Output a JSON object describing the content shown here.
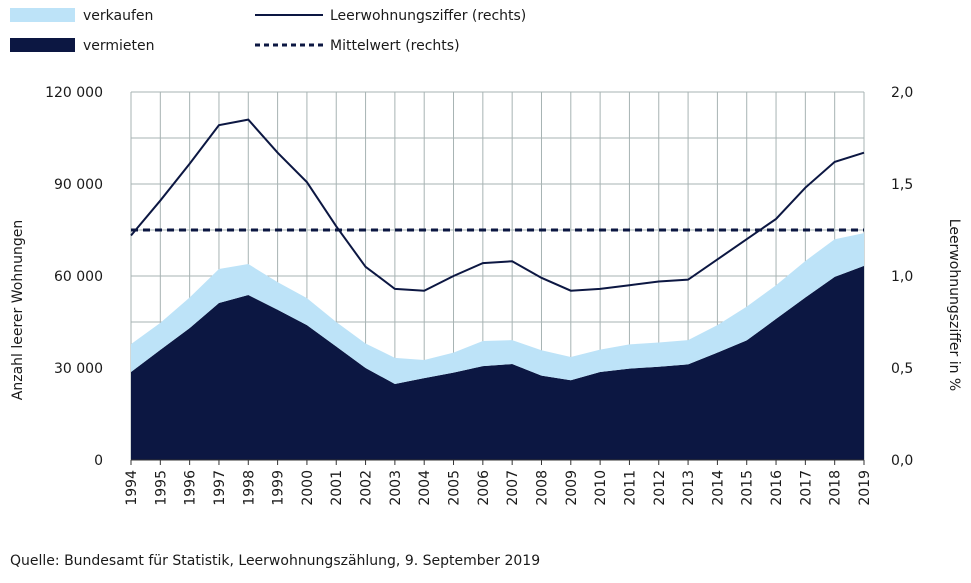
{
  "chart_data": {
    "type": "area",
    "x": [
      1994,
      1995,
      1996,
      1997,
      1998,
      1999,
      2000,
      2001,
      2002,
      2003,
      2004,
      2005,
      2006,
      2007,
      2008,
      2009,
      2010,
      2011,
      2012,
      2013,
      2014,
      2015,
      2016,
      2017,
      2018,
      2019
    ],
    "series": [
      {
        "name": "vermieten",
        "kind": "area-stacked",
        "axis": "left",
        "color": "#0c1742",
        "values": [
          28700,
          35900,
          43000,
          51200,
          53800,
          49000,
          44000,
          37000,
          30000,
          24800,
          26700,
          28500,
          30600,
          31300,
          27500,
          26000,
          28700,
          29800,
          30400,
          31200,
          35000,
          39000,
          46000,
          53000,
          59700,
          63300
        ]
      },
      {
        "name": "verkaufen",
        "kind": "area-stacked",
        "axis": "left",
        "color": "#bde3f8",
        "values": [
          9100,
          8800,
          10000,
          11100,
          10100,
          9000,
          8800,
          8000,
          8000,
          8500,
          5900,
          6500,
          8200,
          7800,
          8300,
          7600,
          7300,
          7900,
          7900,
          7900,
          9000,
          11000,
          11000,
          11900,
          12300,
          10700
        ]
      },
      {
        "name": "Leerwohnungsziffer (rechts)",
        "kind": "line",
        "axis": "right",
        "color": "#0c1742",
        "values": [
          1.22,
          1.41,
          1.61,
          1.82,
          1.85,
          1.67,
          1.51,
          1.27,
          1.05,
          0.93,
          0.92,
          1.0,
          1.07,
          1.08,
          0.99,
          0.92,
          0.93,
          0.95,
          0.97,
          0.98,
          1.09,
          1.2,
          1.31,
          1.48,
          1.62,
          1.67
        ]
      },
      {
        "name": "Mittelwert (rechts)",
        "kind": "dashed-line",
        "axis": "right",
        "color": "#0c1742",
        "values": [
          1.25,
          1.25,
          1.25,
          1.25,
          1.25,
          1.25,
          1.25,
          1.25,
          1.25,
          1.25,
          1.25,
          1.25,
          1.25,
          1.25,
          1.25,
          1.25,
          1.25,
          1.25,
          1.25,
          1.25,
          1.25,
          1.25,
          1.25,
          1.25,
          1.25,
          1.25
        ]
      }
    ],
    "ylabel": "Anzahl leerer Wohnungen",
    "y2label": "Leerwohnungsziffer in %",
    "ylim": [
      0,
      120000
    ],
    "y2lim": [
      0,
      2.0
    ],
    "yticks": [
      "0",
      "30 000",
      "60 000",
      "90 000",
      "120 000"
    ],
    "y2ticks": [
      "0,0",
      "0,5",
      "1,0",
      "1,5",
      "2,0"
    ],
    "grid": true,
    "legend_placement": "top",
    "legend": [
      {
        "label": "verkaufen",
        "swatch": "area",
        "color": "#bde3f8"
      },
      {
        "label": "vermieten",
        "swatch": "area",
        "color": "#0c1742"
      },
      {
        "label": "Leerwohnungsziffer (rechts)",
        "swatch": "line"
      },
      {
        "label": "Mittelwert (rechts)",
        "swatch": "dashed"
      }
    ],
    "grid_color": "#a7b3b3"
  },
  "source": "Quelle: Bundesamt für Statistik, Leerwohnungszählung, 9. September 2019"
}
